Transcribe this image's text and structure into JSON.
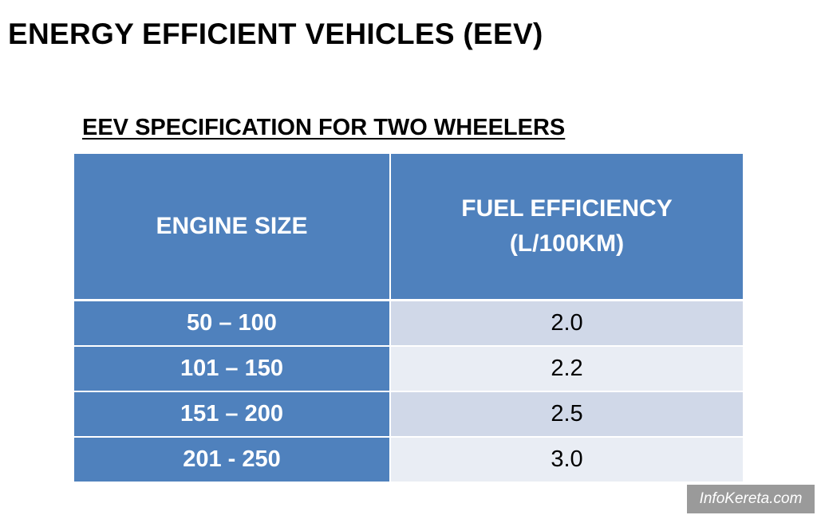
{
  "title": "ENERGY EFFICIENT VEHICLES (EEV)",
  "subtitle": "EEV SPECIFICATION FOR TWO WHEELERS",
  "table": {
    "headers": {
      "engine_size": "ENGINE SIZE",
      "fuel_efficiency_line1": "FUEL EFFICIENCY",
      "fuel_efficiency_line2": "(L/100KM)"
    },
    "rows": [
      {
        "engine_size": "50 – 100",
        "fuel_efficiency": "2.0"
      },
      {
        "engine_size": "101 – 150",
        "fuel_efficiency": "2.2"
      },
      {
        "engine_size": "151 – 200",
        "fuel_efficiency": "2.5"
      },
      {
        "engine_size": "201 - 250",
        "fuel_efficiency": "3.0"
      }
    ]
  },
  "watermark": "InfoKereta.com",
  "colors": {
    "header_blue": "#4f81bd",
    "row_band_dark": "#d0d8e8",
    "row_band_light": "#e9edf4"
  }
}
